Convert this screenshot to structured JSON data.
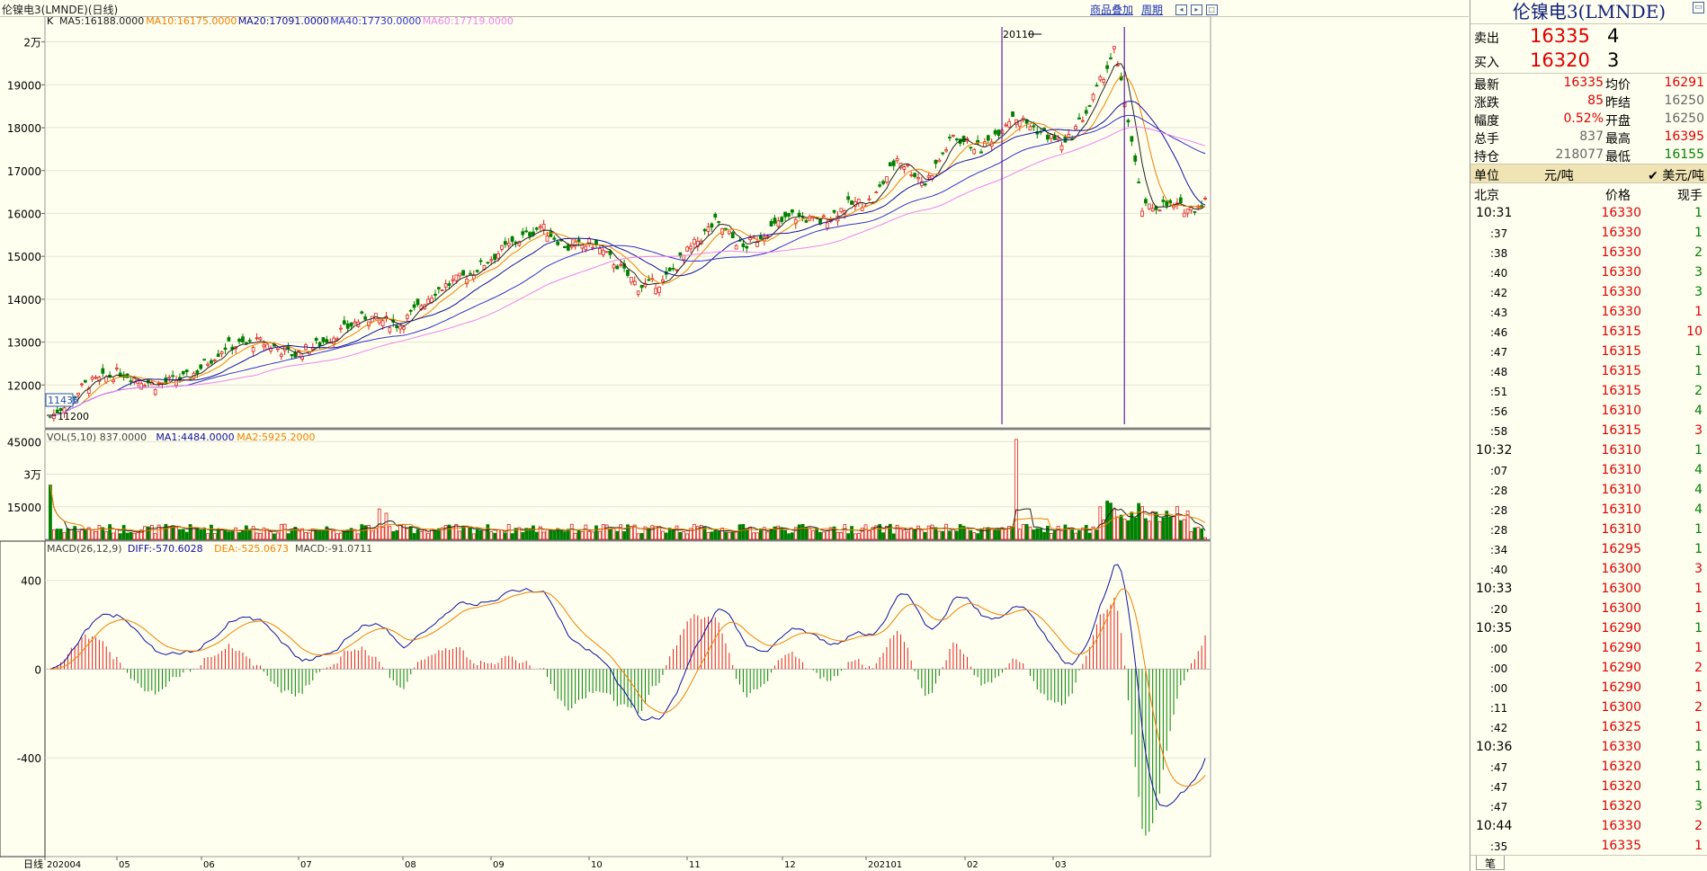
{
  "window": {
    "title": "伦镍电3(LMNDE)(日线)",
    "link_overlay": "商品叠加",
    "link_period": "周期"
  },
  "chart_data": [
    {
      "type": "candlestick",
      "period": "日线",
      "ylim": [
        11000,
        20600
      ],
      "yticks": [
        {
          "v": 12000,
          "label": "12000"
        },
        {
          "v": 13000,
          "label": "13000"
        },
        {
          "v": 14000,
          "label": "14000"
        },
        {
          "v": 15000,
          "label": "15000"
        },
        {
          "v": 16000,
          "label": "16000"
        },
        {
          "v": 17000,
          "label": "17000"
        },
        {
          "v": 18000,
          "label": "18000"
        },
        {
          "v": 19000,
          "label": "19000"
        },
        {
          "v": 20000,
          "label": "2万"
        }
      ],
      "xticks": [
        "202004",
        "05",
        "06",
        "07",
        "08",
        "09",
        "10",
        "11",
        "12",
        "202101",
        "02",
        "03"
      ],
      "legend": {
        "prefix": "K",
        "ma5": "MA5:16188.0000",
        "ma10": "MA10:16175.0000",
        "ma20": "MA20:17091.0000",
        "ma40": "MA40:17730.0000",
        "ma60": "MA60:17719.0000"
      },
      "annotations": {
        "high": "20110",
        "low": "11200",
        "cursor": "11436"
      },
      "key_points": [
        [
          0,
          11250
        ],
        [
          10,
          12000
        ],
        [
          20,
          12300
        ],
        [
          30,
          12000
        ],
        [
          40,
          12200
        ],
        [
          50,
          12900
        ],
        [
          60,
          13000
        ],
        [
          70,
          12700
        ],
        [
          80,
          13100
        ],
        [
          90,
          13600
        ],
        [
          100,
          13400
        ],
        [
          110,
          14200
        ],
        [
          120,
          14600
        ],
        [
          130,
          15200
        ],
        [
          140,
          15700
        ],
        [
          148,
          15200
        ],
        [
          155,
          15300
        ],
        [
          162,
          14800
        ],
        [
          168,
          14300
        ],
        [
          175,
          14400
        ],
        [
          182,
          15100
        ],
        [
          190,
          15800
        ],
        [
          198,
          15200
        ],
        [
          205,
          15600
        ],
        [
          212,
          15950
        ],
        [
          220,
          15800
        ],
        [
          228,
          16200
        ],
        [
          235,
          16300
        ],
        [
          242,
          17300
        ],
        [
          250,
          16700
        ],
        [
          258,
          17800
        ],
        [
          266,
          17500
        ],
        [
          275,
          18300
        ],
        [
          283,
          17900
        ],
        [
          290,
          17600
        ],
        [
          297,
          18500
        ],
        [
          304,
          19800
        ],
        [
          308,
          18200
        ],
        [
          312,
          16100
        ],
        [
          318,
          16200
        ],
        [
          326,
          16100
        ],
        [
          330,
          16300
        ]
      ],
      "colors": {
        "up": "#e02020",
        "down": "#008000",
        "ma5": "#222222",
        "ma10": "#f08000",
        "ma20": "#1010a0",
        "ma40": "#3030d0",
        "ma60": "#f080f0",
        "vline": "#6020a0"
      }
    },
    {
      "type": "bar",
      "ylim": [
        0,
        48000
      ],
      "yticks": [
        {
          "v": 15000,
          "label": "15000"
        },
        {
          "v": 30000,
          "label": "3万"
        },
        {
          "v": 45000,
          "label": "45000"
        }
      ],
      "legend": {
        "prefix": "VOL(5,10) 837.0000",
        "ma1": "MA1:4484.0000",
        "ma2": "MA2:5925.2000"
      },
      "spikes": [
        [
          0,
          25000
        ],
        [
          94,
          14000
        ],
        [
          96,
          12000
        ],
        [
          276,
          46000
        ],
        [
          318,
          22000
        ],
        [
          320,
          23000
        ],
        [
          314,
          16000
        ],
        [
          330,
          800
        ]
      ]
    },
    {
      "type": "bar+line",
      "ylim": [
        -780,
        520
      ],
      "yticks": [
        {
          "v": 400,
          "label": "400"
        },
        {
          "v": 0,
          "label": "0"
        },
        {
          "v": -400,
          "label": "-400"
        }
      ],
      "legend": {
        "prefix": "MACD(26,12,9)",
        "diff": "DIFF:-570.6028",
        "dea": "DEA:-525.0673",
        "macd": "MACD:-91.0711"
      }
    }
  ],
  "panel": {
    "title": "伦镍电3(LMNDE)",
    "sell_label": "卖出",
    "sell_price": "16335",
    "sell_vol": "4",
    "buy_label": "买入",
    "buy_price": "16320",
    "buy_vol": "3",
    "stats": [
      {
        "l1": "最新",
        "v1": "16335",
        "c1": "red",
        "l2": "均价",
        "v2": "16291",
        "c2": "red"
      },
      {
        "l1": "涨跌",
        "v1": "85",
        "c1": "red",
        "l2": "昨结",
        "v2": "16250",
        "c2": "gray"
      },
      {
        "l1": "幅度",
        "v1": "0.52%",
        "c1": "red",
        "l2": "开盘",
        "v2": "16250",
        "c2": "gray"
      },
      {
        "l1": "总手",
        "v1": "837",
        "c1": "gray",
        "l2": "最高",
        "v2": "16395",
        "c2": "red"
      },
      {
        "l1": "持仓",
        "v1": "218077",
        "c1": "gray",
        "l2": "最低",
        "v2": "16155",
        "c2": "grn"
      }
    ],
    "unit_label": "单位",
    "unit_value": "元/吨",
    "unit_alt": "✔ 美元/吨",
    "tick_header": {
      "time": "北京",
      "price": "价格",
      "vol": "现手"
    },
    "ticks": [
      {
        "t": "10:31",
        "p": "16330",
        "v": "1",
        "c": "grn"
      },
      {
        "t": ":37",
        "p": "16330",
        "v": "1",
        "c": "grn"
      },
      {
        "t": ":38",
        "p": "16330",
        "v": "2",
        "c": "grn"
      },
      {
        "t": ":40",
        "p": "16330",
        "v": "3",
        "c": "grn"
      },
      {
        "t": ":42",
        "p": "16330",
        "v": "3",
        "c": "grn"
      },
      {
        "t": ":43",
        "p": "16330",
        "v": "1",
        "c": "red"
      },
      {
        "t": ":46",
        "p": "16315",
        "v": "10",
        "c": "red"
      },
      {
        "t": ":47",
        "p": "16315",
        "v": "1",
        "c": "grn"
      },
      {
        "t": ":48",
        "p": "16315",
        "v": "1",
        "c": "grn"
      },
      {
        "t": ":51",
        "p": "16315",
        "v": "2",
        "c": "grn"
      },
      {
        "t": ":56",
        "p": "16310",
        "v": "4",
        "c": "grn"
      },
      {
        "t": ":58",
        "p": "16315",
        "v": "3",
        "c": "red"
      },
      {
        "t": "10:32",
        "p": "16310",
        "v": "1",
        "c": "grn"
      },
      {
        "t": ":07",
        "p": "16310",
        "v": "4",
        "c": "grn"
      },
      {
        "t": ":28",
        "p": "16310",
        "v": "4",
        "c": "grn"
      },
      {
        "t": ":28",
        "p": "16310",
        "v": "4",
        "c": "grn"
      },
      {
        "t": ":28",
        "p": "16310",
        "v": "1",
        "c": "grn"
      },
      {
        "t": ":34",
        "p": "16295",
        "v": "1",
        "c": "grn"
      },
      {
        "t": ":40",
        "p": "16300",
        "v": "3",
        "c": "red"
      },
      {
        "t": "10:33",
        "p": "16300",
        "v": "1",
        "c": "red"
      },
      {
        "t": ":20",
        "p": "16300",
        "v": "1",
        "c": "red"
      },
      {
        "t": "10:35",
        "p": "16290",
        "v": "1",
        "c": "grn"
      },
      {
        "t": ":00",
        "p": "16290",
        "v": "1",
        "c": "red"
      },
      {
        "t": ":00",
        "p": "16290",
        "v": "2",
        "c": "red"
      },
      {
        "t": ":00",
        "p": "16290",
        "v": "1",
        "c": "red"
      },
      {
        "t": ":11",
        "p": "16300",
        "v": "2",
        "c": "red"
      },
      {
        "t": ":42",
        "p": "16325",
        "v": "1",
        "c": "red"
      },
      {
        "t": "10:36",
        "p": "16330",
        "v": "1",
        "c": "grn"
      },
      {
        "t": ":47",
        "p": "16320",
        "v": "1",
        "c": "grn"
      },
      {
        "t": ":47",
        "p": "16320",
        "v": "1",
        "c": "grn"
      },
      {
        "t": ":47",
        "p": "16320",
        "v": "3",
        "c": "grn"
      },
      {
        "t": "10:44",
        "p": "16330",
        "v": "2",
        "c": "red"
      },
      {
        "t": ":35",
        "p": "16335",
        "v": "1",
        "c": "red"
      }
    ],
    "bottom_tab": "笔"
  }
}
